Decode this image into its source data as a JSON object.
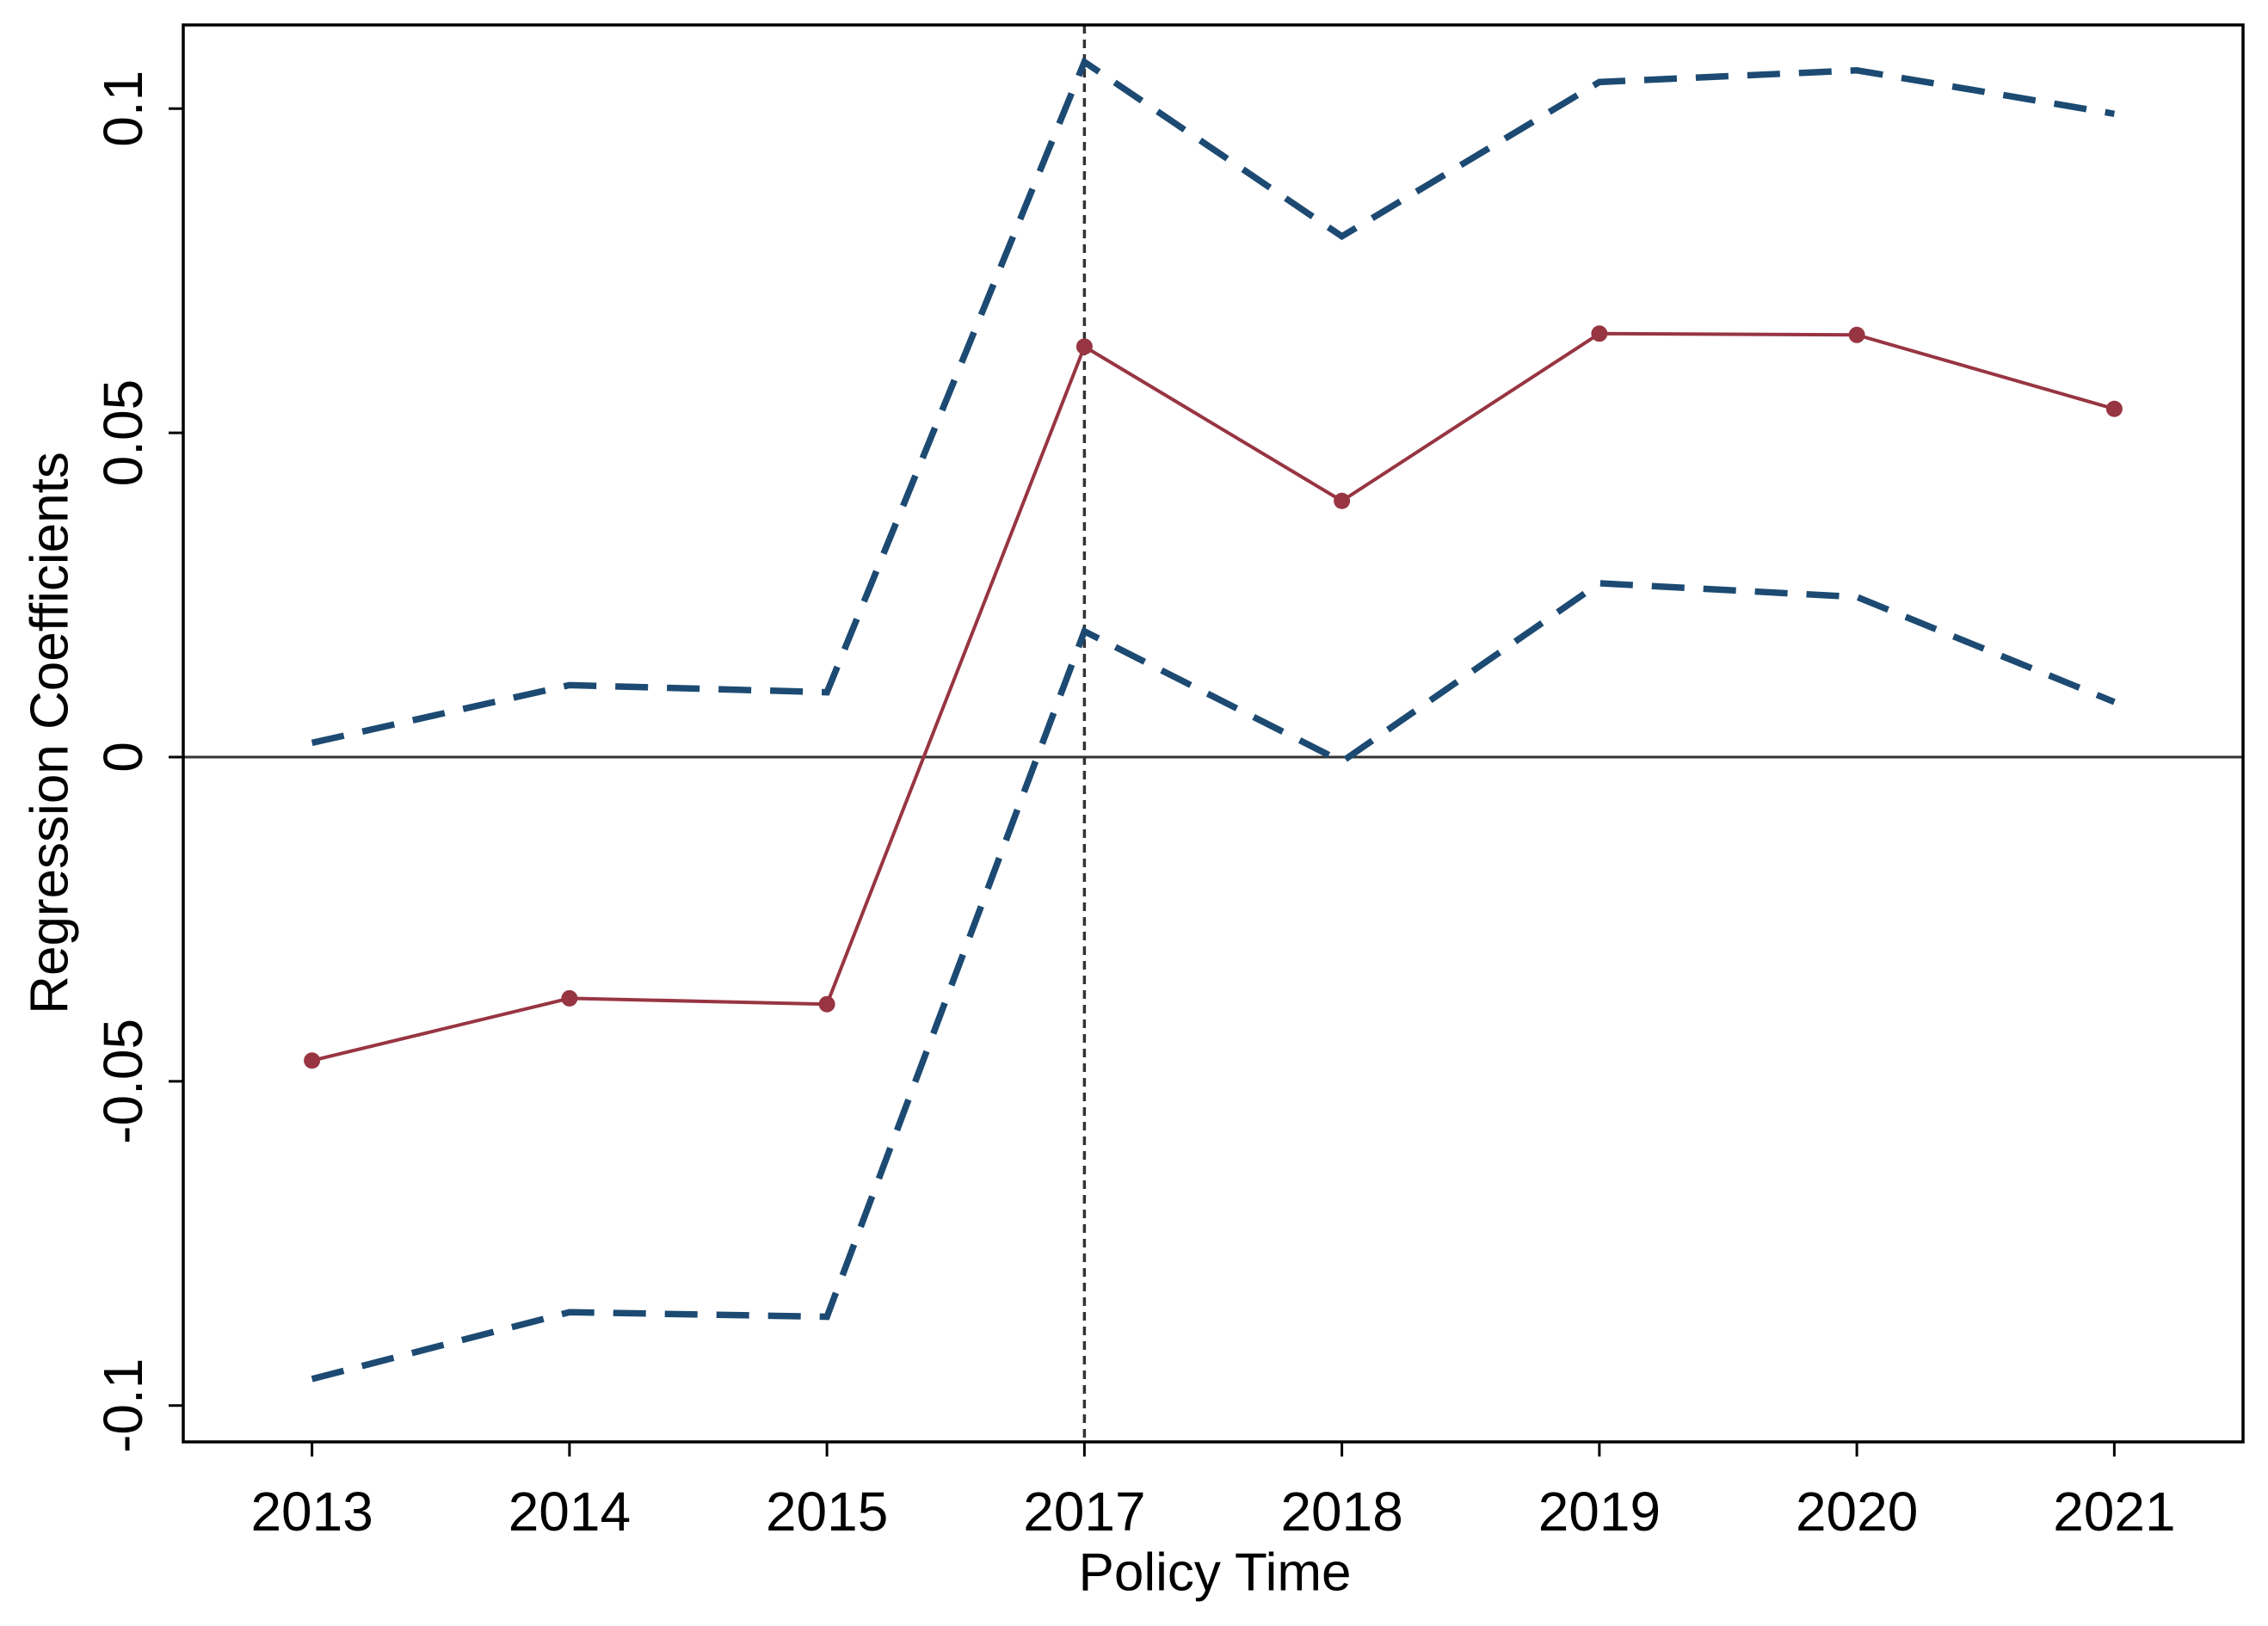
{
  "chart_data": {
    "type": "line",
    "x_label": "Policy Time",
    "y_label": "Regression Coefficients",
    "categories": [
      "2013",
      "2014",
      "2015",
      "2017",
      "2018",
      "2019",
      "2020",
      "2021"
    ],
    "series": [
      {
        "color": "#983542",
        "dashed": false,
        "markers": true,
        "values": [
          -0.0468,
          -0.0372,
          -0.0381,
          0.0633,
          0.0395,
          0.0653,
          0.0651,
          0.0537
        ]
      },
      {
        "color": "#1c4a72",
        "dashed": true,
        "markers": false,
        "values": [
          0.0022,
          0.0111,
          0.01,
          0.1072,
          0.0803,
          0.1041,
          0.1059,
          0.0992
        ]
      },
      {
        "color": "#1c4a72",
        "dashed": true,
        "markers": false,
        "values": [
          -0.0959,
          -0.0856,
          -0.0863,
          0.0194,
          -0.0007,
          0.0268,
          0.0247,
          0.0085
        ]
      }
    ],
    "ylim": [
      -0.1056,
      0.1129
    ],
    "yticks": [
      -0.1,
      -0.05,
      0,
      0.05,
      0.1
    ],
    "hline": 0,
    "vline": "2017",
    "grid": false
  }
}
